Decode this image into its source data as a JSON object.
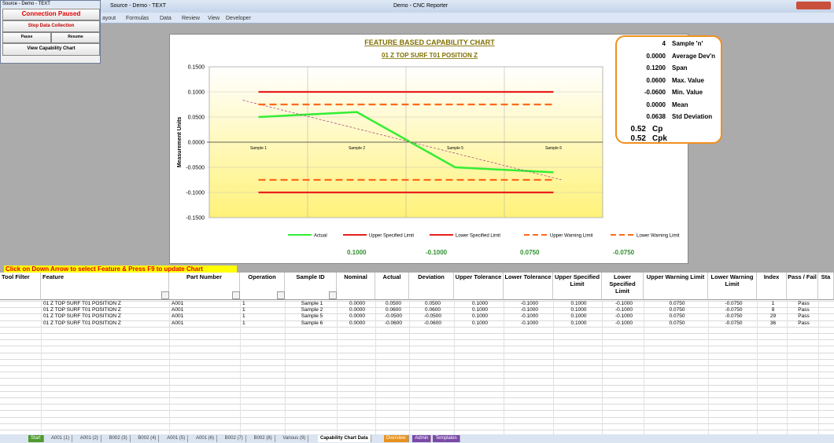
{
  "window": {
    "left_title": "Source - Demo - TEXT",
    "title": "Demo - CNC Reporter"
  },
  "ribbon_tabs": [
    "ayout",
    "Formulas",
    "Data",
    "Review",
    "View",
    "Developer"
  ],
  "control_panel": {
    "status": "Connection Paused",
    "stop": "Stop Data Collection",
    "pause": "Pause",
    "resume": "Resume",
    "view_chart": "View Capability Chart"
  },
  "chart": {
    "type": "line",
    "title": "FEATURE BASED CAPABILITY CHART",
    "subtitle": "01 Z TOP SURF T01 POSITION Z",
    "y_label": "Measurement Units",
    "categories": [
      "Sample 1",
      "Sample 2",
      "Sample 5",
      "Sample 6"
    ],
    "series": [
      {
        "name": "Actual",
        "color": "#33ee33",
        "values": [
          0.05,
          0.06,
          -0.05,
          -0.06
        ]
      },
      {
        "name": "Upper Specified Limit",
        "color": "#e8201c",
        "values": [
          0.1,
          0.1,
          0.1,
          0.1
        ]
      },
      {
        "name": "Lower Specified Limit",
        "color": "#e8201c",
        "values": [
          -0.1,
          -0.1,
          -0.1,
          -0.1
        ]
      },
      {
        "name": "Upper Warning Limit",
        "color": "#ff6a1a",
        "dashed": true,
        "values": [
          0.075,
          0.075,
          0.075,
          0.075
        ]
      },
      {
        "name": "Lower Warning Limit",
        "color": "#ff6a1a",
        "dashed": true,
        "values": [
          -0.075,
          -0.075,
          -0.075,
          -0.075
        ]
      }
    ],
    "ylim": [
      -0.15,
      0.15
    ],
    "yticks": [
      {
        "value": 0.15,
        "label": "0.1500"
      },
      {
        "value": 0.1,
        "label": "0.1000"
      },
      {
        "value": 0.05,
        "label": "0.0500"
      },
      {
        "value": 0,
        "label": "0.0000"
      },
      {
        "value": -0.05,
        "label": "-0.0500"
      },
      {
        "value": -0.1,
        "label": "-0.1000"
      },
      {
        "value": -0.15,
        "label": "-0.1500"
      }
    ],
    "grid": true,
    "limit_labels": [
      "0.1000",
      "-0.1000",
      "0.0750",
      "-0.0750"
    ]
  },
  "stats": [
    {
      "value": "4",
      "label": "Sample 'n'"
    },
    {
      "value": "0.0000",
      "label": "Average Dev'n"
    },
    {
      "value": "0.1200",
      "label": "Span"
    },
    {
      "value": "0.0600",
      "label": "Max. Value"
    },
    {
      "value": "-0.0600",
      "label": "Min. Value"
    },
    {
      "value": "0.0000",
      "label": "Mean"
    },
    {
      "value": "0.0638",
      "label": "Std Deviation"
    }
  ],
  "capability": [
    {
      "value": "0.52",
      "label": "Cp"
    },
    {
      "value": "0.52",
      "label": "Cpk"
    }
  ],
  "instruction": "Click on Down Arrow to select Feature & Press F9 to update Chart",
  "table": {
    "columns": [
      "Tool Filter",
      "Feature",
      "Part Number",
      "Operation",
      "Sample ID",
      "Nominal",
      "Actual",
      "Deviation",
      "Upper Tolerance",
      "Lower Tolerance",
      "Upper Specified Limit",
      "Lower Specified Limit",
      "Upper Warning Limit",
      "Lower Warning Limit",
      "Index",
      "Pass / Fail",
      "Sta"
    ],
    "rows": [
      [
        "01 Z TOP SURF T01 POSITION Z",
        "A001",
        "1",
        "Sample 1",
        "0.0000",
        "0.0500",
        "0.0500",
        "0.1000",
        "-0.1000",
        "0.1000",
        "-0.1000",
        "0.0750",
        "-0.0750",
        "1",
        "Pass"
      ],
      [
        "01 Z TOP SURF T01 POSITION Z",
        "A001",
        "1",
        "Sample 2",
        "0.0000",
        "0.0600",
        "0.0600",
        "0.1000",
        "-0.1000",
        "0.1000",
        "-0.1000",
        "0.0750",
        "-0.0750",
        "8",
        "Pass"
      ],
      [
        "01 Z TOP SURF T01 POSITION Z",
        "A001",
        "1",
        "Sample 5",
        "0.0000",
        "-0.0500",
        "-0.0500",
        "0.1000",
        "-0.1000",
        "0.1000",
        "-0.1000",
        "0.0750",
        "-0.0750",
        "29",
        "Pass"
      ],
      [
        "01 Z TOP SURF T01 POSITION Z",
        "A001",
        "1",
        "Sample 6",
        "0.0000",
        "-0.0600",
        "-0.0600",
        "0.1000",
        "-0.1000",
        "0.1000",
        "-0.1000",
        "0.0750",
        "-0.0750",
        "36",
        "Pass"
      ]
    ]
  },
  "sheet_tabs": [
    "Start",
    "A001 (1)",
    "A001 (2)",
    "B002 (3)",
    "B002 (4)",
    "A001 (5)",
    "A001 (6)",
    "B002 (7)",
    "B002 (8)",
    "Various (9)",
    "Capability Chart Data",
    "Overview",
    "Admin",
    "Templates"
  ]
}
